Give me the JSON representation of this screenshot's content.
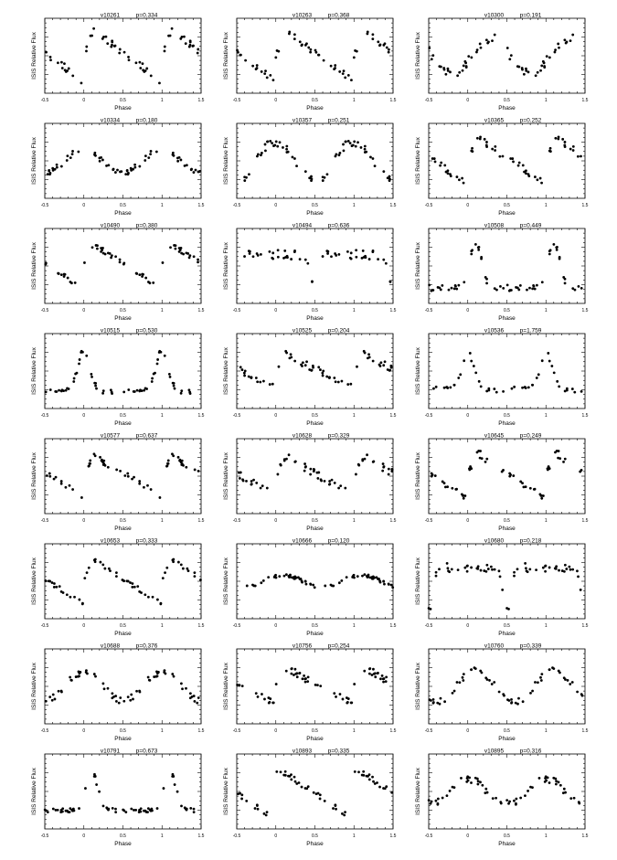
{
  "figure": {
    "columns": 3,
    "rows": 8
  },
  "chart_data": [
    {
      "type": "scatter",
      "title": "v10261",
      "period_label": "p=0.334",
      "xlabel": "Phase",
      "ylabel": "ISIS Relative Flux",
      "xlim": [
        -0.5,
        1.5
      ],
      "xticks": [
        "-0.5",
        "0",
        "0.5",
        "1",
        "1.5"
      ],
      "shape": "sawtooth",
      "phase_peak": 0.0,
      "amplitude": 0.82,
      "scatter": 0.12,
      "n_points": 30,
      "seed": 11
    },
    {
      "type": "scatter",
      "title": "v10263",
      "period_label": "p=0.368",
      "xlabel": "Phase",
      "ylabel": "ISIS Relative Flux",
      "xlim": [
        -0.5,
        1.5
      ],
      "xticks": [
        "-0.5",
        "0",
        "0.5",
        "1",
        "1.5"
      ],
      "shape": "sawtooth",
      "phase_peak": 0.0,
      "amplitude": 0.78,
      "scatter": 0.12,
      "n_points": 30,
      "seed": 12
    },
    {
      "type": "scatter",
      "title": "v10300",
      "period_label": "p=0.191",
      "xlabel": "Phase",
      "ylabel": "ISIS Relative Flux",
      "xlim": [
        -0.5,
        1.5
      ],
      "xticks": [
        "-0.5",
        "0",
        "0.5",
        "1",
        "1.5"
      ],
      "shape": "sine",
      "phase_peak": 0.3,
      "amplitude": 0.55,
      "scatter": 0.15,
      "n_points": 30,
      "seed": 13
    },
    {
      "type": "scatter",
      "title": "v10334",
      "period_label": "p=0.180",
      "xlabel": "Phase",
      "ylabel": "ISIS Relative Flux",
      "xlim": [
        -0.5,
        1.5
      ],
      "xticks": [
        "-0.5",
        "0",
        "0.5",
        "1",
        "1.5"
      ],
      "shape": "sine",
      "phase_peak": 0.0,
      "amplitude": 0.35,
      "scatter": 0.12,
      "n_points": 32,
      "seed": 14
    },
    {
      "type": "scatter",
      "title": "v10357",
      "period_label": "p=0.251",
      "xlabel": "Phase",
      "ylabel": "ISIS Relative Flux",
      "xlim": [
        -0.5,
        1.5
      ],
      "xticks": [
        "-0.5",
        "0",
        "0.5",
        "1",
        "1.5"
      ],
      "shape": "sine",
      "phase_peak": 0.0,
      "amplitude": 0.6,
      "scatter": 0.15,
      "n_points": 32,
      "seed": 15
    },
    {
      "type": "scatter",
      "title": "v10365",
      "period_label": "p=0.252",
      "xlabel": "Phase",
      "ylabel": "ISIS Relative Flux",
      "xlim": [
        -0.5,
        1.5
      ],
      "xticks": [
        "-0.5",
        "0",
        "0.5",
        "1",
        "1.5"
      ],
      "shape": "sawtooth",
      "phase_peak": 0.0,
      "amplitude": 0.75,
      "scatter": 0.12,
      "n_points": 30,
      "seed": 16
    },
    {
      "type": "scatter",
      "title": "v10490",
      "period_label": "p=0.380",
      "xlabel": "Phase",
      "ylabel": "ISIS Relative Flux",
      "xlim": [
        -0.5,
        1.5
      ],
      "xticks": [
        "-0.5",
        "0",
        "0.5",
        "1",
        "1.5"
      ],
      "shape": "sawtooth",
      "phase_peak": 0.0,
      "amplitude": 0.7,
      "scatter": 0.1,
      "n_points": 30,
      "seed": 17
    },
    {
      "type": "scatter",
      "title": "v10494",
      "period_label": "p=0.636",
      "xlabel": "Phase",
      "ylabel": "ISIS Relative Flux",
      "xlim": [
        -0.5,
        1.5
      ],
      "xticks": [
        "-0.5",
        "0",
        "0.5",
        "1",
        "1.5"
      ],
      "shape": "eclipse",
      "phase_peak": 0.0,
      "amplitude": 0.6,
      "scatter": 0.15,
      "n_points": 28,
      "seed": 18
    },
    {
      "type": "scatter",
      "title": "v10508",
      "period_label": "p=0.449",
      "xlabel": "Phase",
      "ylabel": "ISIS Relative Flux",
      "xlim": [
        -0.5,
        1.5
      ],
      "xticks": [
        "-0.5",
        "0",
        "0.5",
        "1",
        "1.5"
      ],
      "shape": "peak",
      "phase_peak": 0.1,
      "amplitude": 0.7,
      "scatter": 0.1,
      "n_points": 32,
      "seed": 19
    },
    {
      "type": "scatter",
      "title": "v10515",
      "period_label": "p=0.530",
      "xlabel": "Phase",
      "ylabel": "ISIS Relative Flux",
      "xlim": [
        -0.5,
        1.5
      ],
      "xticks": [
        "-0.5",
        "0",
        "0.5",
        "1",
        "1.5"
      ],
      "shape": "peak",
      "phase_peak": 0.0,
      "amplitude": 0.65,
      "scatter": 0.08,
      "n_points": 32,
      "seed": 20
    },
    {
      "type": "scatter",
      "title": "v10525",
      "period_label": "p=0.204",
      "xlabel": "Phase",
      "ylabel": "ISIS Relative Flux",
      "xlim": [
        -0.5,
        1.5
      ],
      "xticks": [
        "-0.5",
        "0",
        "0.5",
        "1",
        "1.5"
      ],
      "shape": "sawtooth",
      "phase_peak": 0.0,
      "amplitude": 0.55,
      "scatter": 0.12,
      "n_points": 32,
      "seed": 21
    },
    {
      "type": "scatter",
      "title": "v10536",
      "period_label": "p=1.759",
      "xlabel": "Phase",
      "ylabel": "ISIS Relative Flux",
      "xlim": [
        -0.5,
        1.5
      ],
      "xticks": [
        "-0.5",
        "0",
        "0.5",
        "1",
        "1.5"
      ],
      "shape": "peak",
      "phase_peak": 0.0,
      "amplitude": 0.6,
      "scatter": 0.1,
      "n_points": 24,
      "seed": 22
    },
    {
      "type": "scatter",
      "title": "v10577",
      "period_label": "p=0.637",
      "xlabel": "Phase",
      "ylabel": "ISIS Relative Flux",
      "xlim": [
        -0.5,
        1.5
      ],
      "xticks": [
        "-0.5",
        "0",
        "0.5",
        "1",
        "1.5"
      ],
      "shape": "sawtooth",
      "phase_peak": 0.0,
      "amplitude": 0.65,
      "scatter": 0.1,
      "n_points": 30,
      "seed": 23
    },
    {
      "type": "scatter",
      "title": "v10628",
      "period_label": "p=0.329",
      "xlabel": "Phase",
      "ylabel": "ISIS Relative Flux",
      "xlim": [
        -0.5,
        1.5
      ],
      "xticks": [
        "-0.5",
        "0",
        "0.5",
        "1",
        "1.5"
      ],
      "shape": "sawtooth",
      "phase_peak": 0.0,
      "amplitude": 0.65,
      "scatter": 0.12,
      "n_points": 32,
      "seed": 24
    },
    {
      "type": "scatter",
      "title": "v10645",
      "period_label": "p=0.249",
      "xlabel": "Phase",
      "ylabel": "ISIS Relative Flux",
      "xlim": [
        -0.5,
        1.5
      ],
      "xticks": [
        "-0.5",
        "0",
        "0.5",
        "1",
        "1.5"
      ],
      "shape": "sawtooth",
      "phase_peak": 0.0,
      "amplitude": 0.75,
      "scatter": 0.12,
      "n_points": 30,
      "seed": 25
    },
    {
      "type": "scatter",
      "title": "v10653",
      "period_label": "p=0.333",
      "xlabel": "Phase",
      "ylabel": "ISIS Relative Flux",
      "xlim": [
        -0.5,
        1.5
      ],
      "xticks": [
        "-0.5",
        "0",
        "0.5",
        "1",
        "1.5"
      ],
      "shape": "sawtooth",
      "phase_peak": 0.0,
      "amplitude": 0.7,
      "scatter": 0.1,
      "n_points": 32,
      "seed": 26
    },
    {
      "type": "scatter",
      "title": "v10666",
      "period_label": "p=0.120",
      "xlabel": "Phase",
      "ylabel": "ISIS Relative Flux",
      "xlim": [
        -0.5,
        1.5
      ],
      "xticks": [
        "-0.5",
        "0",
        "0.5",
        "1",
        "1.5"
      ],
      "shape": "sine",
      "phase_peak": 0.1,
      "amplitude": 0.2,
      "scatter": 0.06,
      "n_points": 36,
      "seed": 27
    },
    {
      "type": "scatter",
      "title": "v10680",
      "period_label": "p=0.218",
      "xlabel": "Phase",
      "ylabel": "ISIS Relative Flux",
      "xlim": [
        -0.5,
        1.5
      ],
      "xticks": [
        "-0.5",
        "0",
        "0.5",
        "1",
        "1.5"
      ],
      "shape": "eclipse",
      "phase_peak": 0.0,
      "amplitude": 0.7,
      "scatter": 0.15,
      "n_points": 30,
      "seed": 28
    },
    {
      "type": "scatter",
      "title": "v10688",
      "period_label": "p=0.376",
      "xlabel": "Phase",
      "ylabel": "ISIS Relative Flux",
      "xlim": [
        -0.5,
        1.5
      ],
      "xticks": [
        "-0.5",
        "0",
        "0.5",
        "1",
        "1.5"
      ],
      "shape": "sine",
      "phase_peak": 0.0,
      "amplitude": 0.45,
      "scatter": 0.1,
      "n_points": 32,
      "seed": 29
    },
    {
      "type": "scatter",
      "title": "v10756",
      "period_label": "p=0.254",
      "xlabel": "Phase",
      "ylabel": "ISIS Relative Flux",
      "xlim": [
        -0.5,
        1.5
      ],
      "xticks": [
        "-0.5",
        "0",
        "0.5",
        "1",
        "1.5"
      ],
      "shape": "sawtooth",
      "phase_peak": 0.0,
      "amplitude": 0.6,
      "scatter": 0.12,
      "n_points": 32,
      "seed": 30
    },
    {
      "type": "scatter",
      "title": "v10760",
      "period_label": "p=0.339",
      "xlabel": "Phase",
      "ylabel": "ISIS Relative Flux",
      "xlim": [
        -0.5,
        1.5
      ],
      "xticks": [
        "-0.5",
        "0",
        "0.5",
        "1",
        "1.5"
      ],
      "shape": "sine",
      "phase_peak": 0.1,
      "amplitude": 0.5,
      "scatter": 0.1,
      "n_points": 30,
      "seed": 31
    },
    {
      "type": "scatter",
      "title": "v10791",
      "period_label": "p=0.673",
      "xlabel": "Phase",
      "ylabel": "ISIS Relative Flux",
      "xlim": [
        -0.5,
        1.5
      ],
      "xticks": [
        "-0.5",
        "0",
        "0.5",
        "1",
        "1.5"
      ],
      "shape": "peak",
      "phase_peak": 0.1,
      "amplitude": 0.6,
      "scatter": 0.08,
      "n_points": 34,
      "seed": 32
    },
    {
      "type": "scatter",
      "title": "v10893",
      "period_label": "p=0.335",
      "xlabel": "Phase",
      "ylabel": "ISIS Relative Flux",
      "xlim": [
        -0.5,
        1.5
      ],
      "xticks": [
        "-0.5",
        "0",
        "0.5",
        "1",
        "1.5"
      ],
      "shape": "sawtooth",
      "phase_peak": -0.1,
      "amplitude": 0.75,
      "scatter": 0.1,
      "n_points": 30,
      "seed": 33
    },
    {
      "type": "scatter",
      "title": "v10895",
      "period_label": "p=0.316",
      "xlabel": "Phase",
      "ylabel": "ISIS Relative Flux",
      "xlim": [
        -0.5,
        1.5
      ],
      "xticks": [
        "-0.5",
        "0",
        "0.5",
        "1",
        "1.5"
      ],
      "shape": "sine",
      "phase_peak": 0.0,
      "amplitude": 0.4,
      "scatter": 0.12,
      "n_points": 32,
      "seed": 34
    }
  ]
}
